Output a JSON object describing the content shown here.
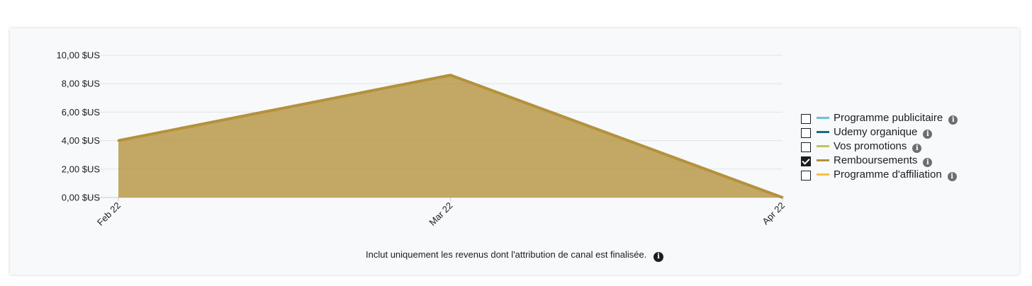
{
  "chart_data": {
    "type": "area",
    "x": [
      "Feb 22",
      "Mar 22",
      "Apr 22"
    ],
    "series": [
      {
        "name": "Remboursements",
        "values": [
          4.0,
          8.6,
          0.0
        ],
        "color": "#b4913a"
      }
    ],
    "yticks": [
      "0,00 $US",
      "2,00 $US",
      "4,00 $US",
      "6,00 $US",
      "8,00 $US",
      "10,00 $US"
    ],
    "ylim": [
      0,
      10
    ],
    "grid": true,
    "legend_position": "right"
  },
  "legend": [
    {
      "label": "Programme publicitaire",
      "color": "#6cc3cf",
      "checked": false
    },
    {
      "label": "Udemy organique",
      "color": "#1d6a85",
      "checked": false
    },
    {
      "label": "Vos promotions",
      "color": "#bfc45a",
      "checked": false
    },
    {
      "label": "Remboursements",
      "color": "#b4913a",
      "checked": true
    },
    {
      "label": "Programme d'affiliation",
      "color": "#f3c04a",
      "checked": false
    }
  ],
  "note": "Inclut uniquement les revenus dont l'attribution de canal est finalisée."
}
